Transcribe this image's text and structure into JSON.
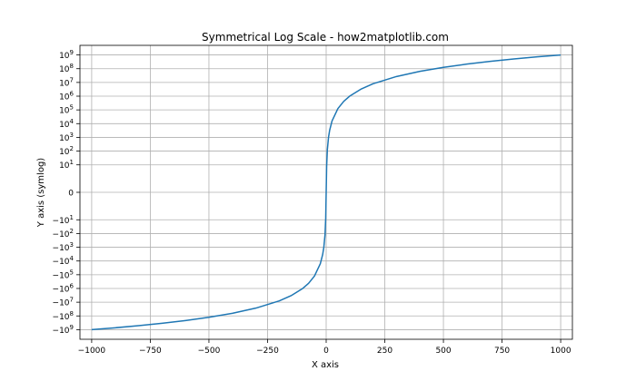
{
  "chart_data": {
    "type": "line",
    "title": "Symmetrical Log Scale - how2matplotlib.com",
    "xlabel": "X axis",
    "ylabel": "Y axis (symlog)",
    "xlim": [
      -1050,
      1050
    ],
    "ylim": [
      -5000000000,
      5000000000
    ],
    "yscale": "symlog",
    "linthresh": 1,
    "grid": true,
    "line_color": "#1f77b4",
    "x_ticks": [
      -1000,
      -750,
      -500,
      -250,
      0,
      250,
      500,
      750,
      1000
    ],
    "x_tick_labels": [
      "−1000",
      "−750",
      "−500",
      "−250",
      "0",
      "250",
      "500",
      "750",
      "1000"
    ],
    "y_ticks": [
      {
        "value": -1000000000,
        "label": "−10",
        "exp": "9"
      },
      {
        "value": -100000000,
        "label": "−10",
        "exp": "8"
      },
      {
        "value": -10000000,
        "label": "−10",
        "exp": "7"
      },
      {
        "value": -1000000,
        "label": "−10",
        "exp": "6"
      },
      {
        "value": -100000,
        "label": "−10",
        "exp": "5"
      },
      {
        "value": -10000,
        "label": "−10",
        "exp": "4"
      },
      {
        "value": -1000,
        "label": "−10",
        "exp": "3"
      },
      {
        "value": -100,
        "label": "−10",
        "exp": "2"
      },
      {
        "value": -10,
        "label": "−10",
        "exp": "1"
      },
      {
        "value": 0,
        "label": "0",
        "exp": ""
      },
      {
        "value": 10,
        "label": "10",
        "exp": "1"
      },
      {
        "value": 100,
        "label": "10",
        "exp": "2"
      },
      {
        "value": 1000,
        "label": "10",
        "exp": "3"
      },
      {
        "value": 10000,
        "label": "10",
        "exp": "4"
      },
      {
        "value": 100000,
        "label": "10",
        "exp": "5"
      },
      {
        "value": 1000000,
        "label": "10",
        "exp": "6"
      },
      {
        "value": 10000000,
        "label": "10",
        "exp": "7"
      },
      {
        "value": 100000000,
        "label": "10",
        "exp": "8"
      },
      {
        "value": 1000000000,
        "label": "10",
        "exp": "9"
      }
    ],
    "series": [
      {
        "x": [
          -1000,
          -900,
          -800,
          -700,
          -600,
          -500,
          -400,
          -300,
          -200,
          -150,
          -100,
          -75,
          -50,
          -25,
          -15,
          -10,
          -5,
          -2,
          0,
          2,
          5,
          10,
          15,
          25,
          50,
          75,
          100,
          150,
          200,
          300,
          400,
          500,
          600,
          700,
          800,
          900,
          1000
        ],
        "y": [
          -1000000000,
          -729000000,
          -512000000,
          -343000000,
          -216000000,
          -125000000,
          -64000000,
          -27000000,
          -8000000,
          -3375000,
          -1000000,
          -421875,
          -125000,
          -15625,
          -3375,
          -1000,
          -125,
          -8,
          0,
          8,
          125,
          1000,
          3375,
          15625,
          125000,
          421875,
          1000000,
          3375000,
          8000000,
          27000000,
          64000000,
          125000000,
          216000000,
          343000000,
          512000000,
          729000000,
          1000000000
        ]
      }
    ]
  }
}
